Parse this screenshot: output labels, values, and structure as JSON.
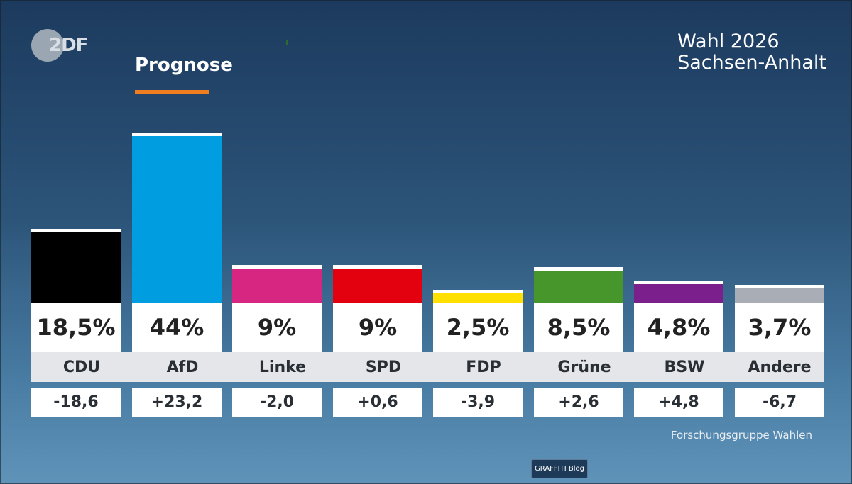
{
  "header": {
    "logo_text": "2DF",
    "section_title": "Prognose",
    "title_line1": "Wahl 2026",
    "title_line2": "Sachsen-Anhalt"
  },
  "source": "Forschungsgruppe Wahlen",
  "watermark": "GRAFFITI Blog",
  "colors": {
    "accent_underline": "#f07d20"
  },
  "chart_data": {
    "type": "bar",
    "categories": [
      "CDU",
      "AfD",
      "Linke",
      "SPD",
      "FDP",
      "Grüne",
      "BSW",
      "Andere"
    ],
    "values": [
      18.5,
      44,
      9,
      9,
      2.5,
      8.5,
      4.8,
      3.7
    ],
    "value_labels": [
      "18,5%",
      "44%",
      "9%",
      "9%",
      "2,5%",
      "8,5%",
      "4,8%",
      "3,7%"
    ],
    "changes": [
      "-18,6",
      "+23,2",
      "-2,0",
      "+0,6",
      "-3,9",
      "+2,6",
      "+4,8",
      "-6,7"
    ],
    "colors": [
      "#000000",
      "#009ee0",
      "#d62682",
      "#e3000f",
      "#ffe000",
      "#46962b",
      "#7b1f8c",
      "#a9aeb6"
    ],
    "title": "Prognose"
  }
}
